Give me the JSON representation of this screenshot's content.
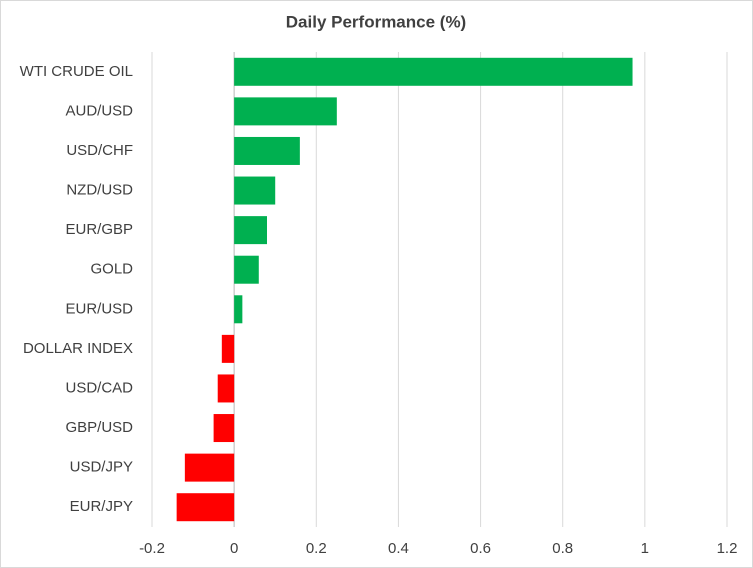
{
  "chart_data": {
    "type": "hbar",
    "title": "Daily Performance (%)",
    "categories": [
      "WTI CRUDE OIL",
      "AUD/USD",
      "USD/CHF",
      "NZD/USD",
      "EUR/GBP",
      "GOLD",
      "EUR/USD",
      "DOLLAR INDEX",
      "USD/CAD",
      "GBP/USD",
      "USD/JPY",
      "EUR/JPY"
    ],
    "values": [
      0.97,
      0.25,
      0.16,
      0.1,
      0.08,
      0.06,
      0.02,
      -0.03,
      -0.04,
      -0.05,
      -0.12,
      -0.14
    ],
    "positive_color": "#00b050",
    "negative_color": "#ff0000",
    "xlim": [
      -0.2,
      1.2
    ],
    "xticks": [
      -0.2,
      0,
      0.2,
      0.4,
      0.6,
      0.8,
      1,
      1.2
    ],
    "grid": true
  }
}
